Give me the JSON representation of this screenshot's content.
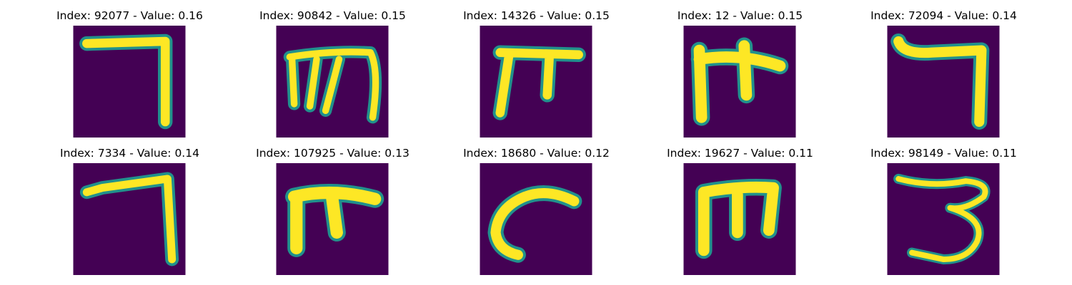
{
  "figure": {
    "colors": {
      "background": "#440154",
      "edge": "#21918c",
      "stroke": "#fde725",
      "midtone": "#5ec962"
    },
    "panels": [
      {
        "label": "Index: 92077 - Value: 0.16",
        "index": 92077,
        "value": 0.16,
        "glyph": "seven-angle"
      },
      {
        "label": "Index: 90842 - Value: 0.15",
        "index": 90842,
        "value": 0.15,
        "glyph": "m-shape"
      },
      {
        "label": "Index: 14326 - Value: 0.15",
        "index": 14326,
        "value": 0.15,
        "glyph": "pi-shape"
      },
      {
        "label": "Index: 12 - Value: 0.15",
        "index": 12,
        "value": 0.15,
        "glyph": "cross-shape"
      },
      {
        "label": "Index: 72094 - Value: 0.14",
        "index": 72094,
        "value": 0.14,
        "glyph": "seven-angle"
      },
      {
        "label": "Index: 7334 - Value: 0.14",
        "index": 7334,
        "value": 0.14,
        "glyph": "seven-angle"
      },
      {
        "label": "Index: 107925 - Value: 0.13",
        "index": 107925,
        "value": 0.13,
        "glyph": "pi-shape"
      },
      {
        "label": "Index: 18680 - Value: 0.12",
        "index": 18680,
        "value": 0.12,
        "glyph": "curve"
      },
      {
        "label": "Index: 19627 - Value: 0.11",
        "index": 19627,
        "value": 0.11,
        "glyph": "m-shape"
      },
      {
        "label": "Index: 98149 - Value: 0.11",
        "index": 98149,
        "value": 0.11,
        "glyph": "three"
      }
    ]
  }
}
